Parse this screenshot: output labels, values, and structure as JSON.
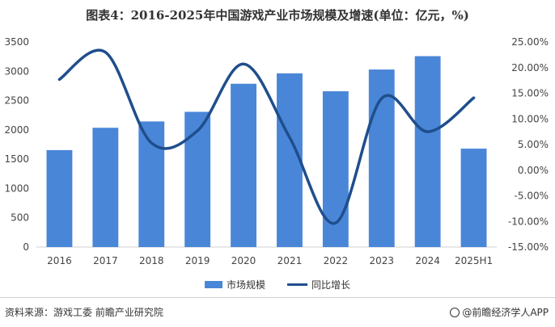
{
  "chart_data": {
    "type": "bar",
    "title": "图表4：2016-2025年中国游戏产业市场规模及增速(单位：亿元，%)",
    "categories": [
      "2016",
      "2017",
      "2018",
      "2019",
      "2020",
      "2021",
      "2022",
      "2023",
      "2024",
      "2025H1"
    ],
    "series": [
      {
        "name": "市场规模",
        "type": "bar",
        "axis": "left",
        "color": "#4a86d8",
        "values": [
          1655,
          2036,
          2144,
          2308,
          2787,
          2965,
          2659,
          3030,
          3258,
          1680
        ]
      },
      {
        "name": "同比增长",
        "type": "line",
        "axis": "right",
        "color": "#1f4e8c",
        "values": [
          17.7,
          23.0,
          5.3,
          7.7,
          20.7,
          6.4,
          -10.3,
          14.0,
          7.5,
          14.1
        ]
      }
    ],
    "y_left": {
      "ylim": [
        0,
        3500
      ],
      "ticks": [
        "0",
        "500",
        "1000",
        "1500",
        "2000",
        "2500",
        "3000",
        "3500"
      ]
    },
    "y_right": {
      "ylim": [
        -15,
        25
      ],
      "ticks": [
        "-15.00%",
        "-10.00%",
        "-5.00%",
        "0.00%",
        "5.00%",
        "10.00%",
        "15.00%",
        "20.00%",
        "25.00%"
      ]
    },
    "grid": false,
    "legend_position": "bottom"
  },
  "footer": {
    "source": "资料来源：游戏工委 前瞻产业研究院",
    "brand": "@前瞻经济学人APP"
  }
}
